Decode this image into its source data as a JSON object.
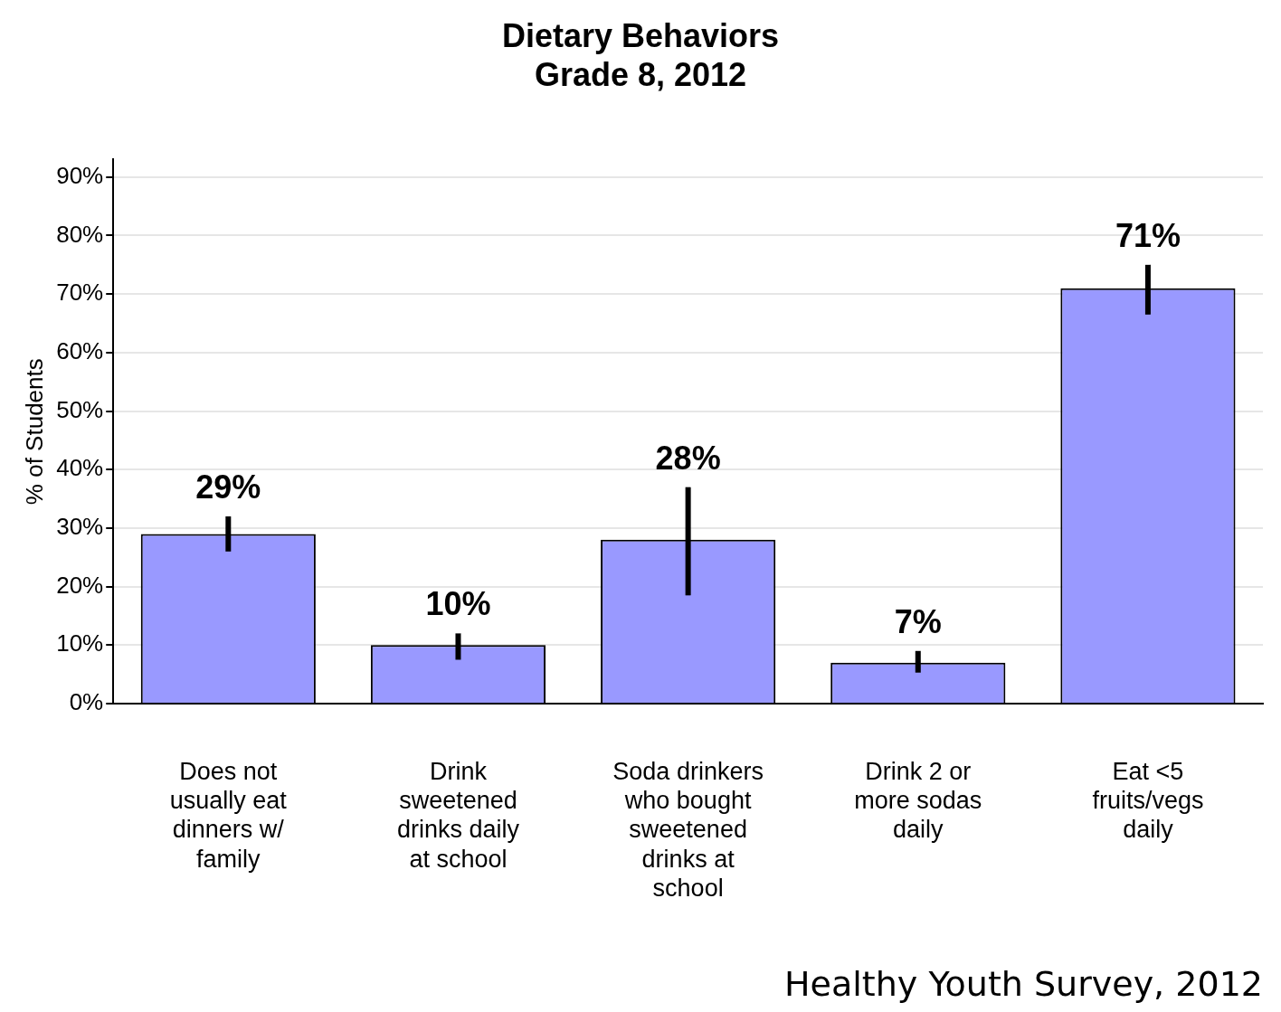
{
  "chart_data": {
    "type": "bar",
    "title": "Dietary Behaviors\nGrade 8, 2012",
    "ylabel": "% of Students",
    "categories": [
      "Does not usually eat dinners w/ family",
      "Drink sweetened drinks daily at school",
      "Soda drinkers who bought sweetened drinks at school",
      "Drink 2 or more sodas daily",
      "Eat <5 fruits/vegs daily"
    ],
    "values": [
      29,
      10,
      28,
      7,
      71
    ],
    "value_labels": [
      "29%",
      "10%",
      "28%",
      "7%",
      "71%"
    ],
    "errors": [
      [
        26,
        32
      ],
      [
        7.5,
        12
      ],
      [
        18.5,
        37
      ],
      [
        5.3,
        9
      ],
      [
        66.5,
        75
      ]
    ],
    "color": "#9999ff",
    "ylim": [
      0,
      93
    ],
    "yticks": [
      {
        "value": 0,
        "label": "0%"
      },
      {
        "value": 10,
        "label": "10%"
      },
      {
        "value": 20,
        "label": "20%"
      },
      {
        "value": 30,
        "label": "30%"
      },
      {
        "value": 40,
        "label": "40%"
      },
      {
        "value": 50,
        "label": "50%"
      },
      {
        "value": 60,
        "label": "60%"
      },
      {
        "value": 70,
        "label": "70%"
      },
      {
        "value": 80,
        "label": "80%"
      },
      {
        "value": 90,
        "label": "90%"
      }
    ],
    "grid": "y",
    "legend": false,
    "annotations": [
      "Healthy Youth Survey, 2012"
    ]
  }
}
